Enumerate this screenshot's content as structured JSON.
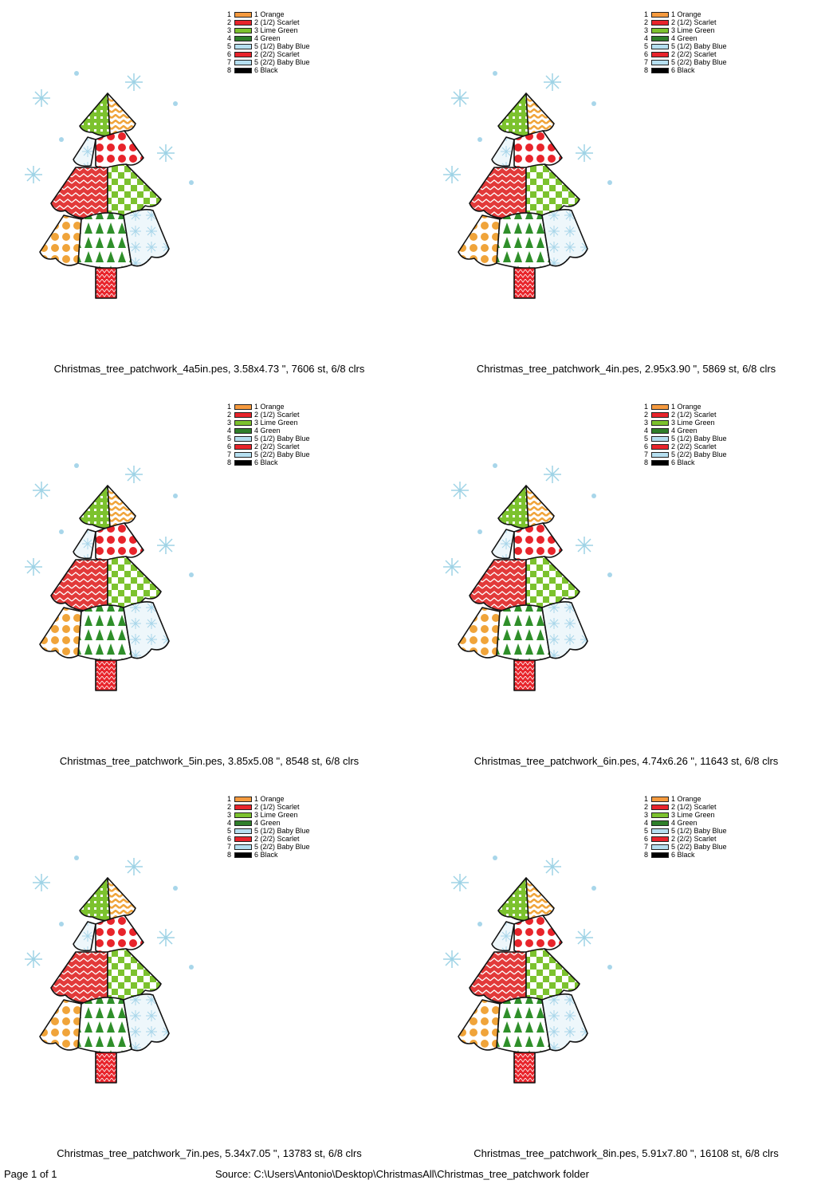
{
  "legend": {
    "rows": [
      {
        "num": "1",
        "label": "1 Orange",
        "color": "#F59A3E"
      },
      {
        "num": "2",
        "label": "2 (1/2) Scarlet",
        "color": "#E8242B"
      },
      {
        "num": "3",
        "label": "3 Lime Green",
        "color": "#7CC22E"
      },
      {
        "num": "4",
        "label": "4 Green",
        "color": "#2F7F2A"
      },
      {
        "num": "5",
        "label": "5 (1/2) Baby Blue",
        "color": "#B5DFF0"
      },
      {
        "num": "6",
        "label": "2 (2/2) Scarlet",
        "color": "#E8242B"
      },
      {
        "num": "7",
        "label": "5 (2/2) Baby Blue",
        "color": "#B5DFF0"
      },
      {
        "num": "8",
        "label": "6 Black",
        "color": "#000000"
      }
    ]
  },
  "designs": [
    {
      "caption": "Christmas_tree_patchwork_4a5in.pes, 3.58x4.73 \", 7606 st, 6/8 clrs"
    },
    {
      "caption": "Christmas_tree_patchwork_4in.pes, 2.95x3.90 \", 5869 st, 6/8 clrs"
    },
    {
      "caption": "Christmas_tree_patchwork_5in.pes, 3.85x5.08 \", 8548 st, 6/8 clrs"
    },
    {
      "caption": "Christmas_tree_patchwork_6in.pes, 4.74x6.26 \", 11643 st, 6/8 clrs"
    },
    {
      "caption": "Christmas_tree_patchwork_7in.pes, 5.34x7.05 \", 13783 st, 6/8 clrs"
    },
    {
      "caption": "Christmas_tree_patchwork_8in.pes, 5.91x7.80 \", 16108 st, 6/8 clrs"
    }
  ],
  "footer": {
    "page": "Page 1 of 1",
    "source": "Source: C:\\Users\\Antonio\\Desktop\\ChristmasAll\\Christmas_tree_patchwork folder"
  },
  "icons": {
    "tree": "embroidery-christmas-tree-icon",
    "snowflake": "snowflake-icon"
  }
}
